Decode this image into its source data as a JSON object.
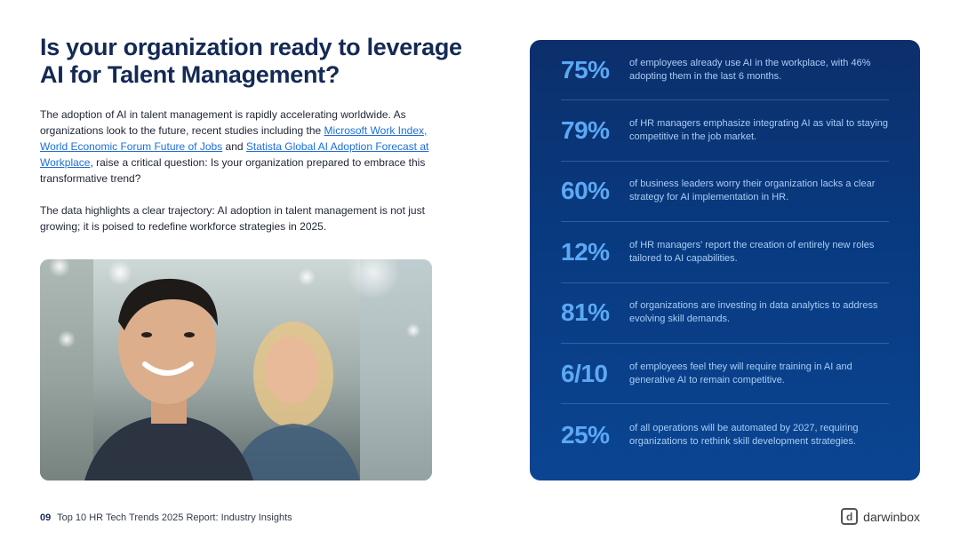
{
  "title": "Is your organization ready to leverage AI for Talent Management?",
  "intro": {
    "p1_start": "The adoption of AI in talent management is rapidly accelerating worldwide. As organizations look to the future, recent studies including the ",
    "link1": "Microsoft Work Index, World Economic Forum Future of Jobs",
    "p1_mid": " and ",
    "link2": "Statista Global AI Adoption Forecast at Workplace",
    "p1_end": ", raise a critical question: Is your organization prepared to embrace this transformative trend?",
    "p2": "The data highlights a clear trajectory: AI adoption in talent management is not just growing; it is poised to redefine workforce strategies in 2025."
  },
  "stats": [
    {
      "value": "75%",
      "text": "of employees already use AI in the workplace, with 46% adopting them in the last 6 months."
    },
    {
      "value": "79%",
      "text": "of HR managers emphasize integrating AI as vital to staying competitive in the job market."
    },
    {
      "value": "60%",
      "text": "of business leaders worry their organization lacks a clear strategy for AI implementation in HR."
    },
    {
      "value": "12%",
      "text": "of HR managers' report the creation of entirely new roles tailored to AI capabilities."
    },
    {
      "value": "81%",
      "text": "of organizations are investing in data analytics to address evolving skill demands."
    },
    {
      "value": "6/10",
      "text": "of employees feel they will require training in AI and generative AI to remain competitive."
    },
    {
      "value": "25%",
      "text": "of all operations will be automated by 2027, requiring organizations to rethink skill development strategies."
    }
  ],
  "footer": {
    "page": "09",
    "text": "Top 10 HR Tech Trends 2025 Report: Industry Insights"
  },
  "brand": {
    "mark": "d",
    "name": "darwinbox"
  },
  "colors": {
    "title": "#142a55",
    "link": "#1d6fd8",
    "panel": "#0b3a7e",
    "stat_value": "#5ca8f5"
  }
}
